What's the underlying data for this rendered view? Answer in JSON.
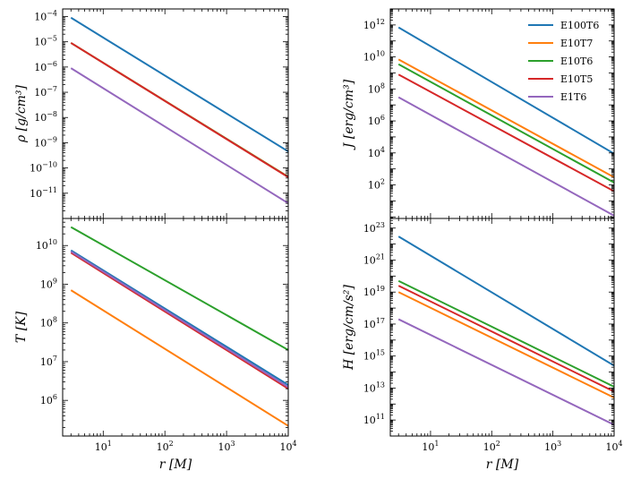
{
  "legend": [
    "E100T6",
    "E10T7",
    "E10T6",
    "E10T5",
    "E1T6"
  ],
  "colors": {
    "E100T6": "#1f77b4",
    "E10T7": "#ff7f0e",
    "E10T6": "#2ca02c",
    "E10T5": "#d62728",
    "E1T6": "#9467bd"
  },
  "chart_data": [
    {
      "type": "line",
      "panel": "top-left",
      "ylabel": "ρ  [g/cm³]",
      "xlabel": "",
      "xscale": "log",
      "yscale": "log",
      "xlim": [
        2.2,
        10000
      ],
      "ylim": [
        1e-12,
        0.0002
      ],
      "yticks": [
        {
          "value": 0.0001,
          "base": "10",
          "exp": "−4"
        },
        {
          "value": 1e-05,
          "base": "10",
          "exp": "−5"
        },
        {
          "value": 1e-06,
          "base": "10",
          "exp": "−6"
        },
        {
          "value": 1e-07,
          "base": "10",
          "exp": "−7"
        },
        {
          "value": 1e-08,
          "base": "10",
          "exp": "−8"
        },
        {
          "value": 1e-09,
          "base": "10",
          "exp": "−9"
        },
        {
          "value": 1e-10,
          "base": "10",
          "exp": "−10"
        },
        {
          "value": 1e-11,
          "base": "10",
          "exp": "−11"
        }
      ],
      "xticks": [],
      "series": [
        {
          "name": "E100T6",
          "x": [
            3,
            10000
          ],
          "y": [
            9e-05,
            4.5e-10
          ]
        },
        {
          "name": "E10T7",
          "x": [
            3,
            10000
          ],
          "y": [
            9e-06,
            4.5e-11
          ]
        },
        {
          "name": "E10T6",
          "x": [
            3,
            10000
          ],
          "y": [
            9e-06,
            4.4e-11
          ]
        },
        {
          "name": "E10T5",
          "x": [
            3,
            10000
          ],
          "y": [
            9e-06,
            4.3e-11
          ]
        },
        {
          "name": "E1T6",
          "x": [
            3,
            10000
          ],
          "y": [
            9e-07,
            4e-12
          ]
        }
      ]
    },
    {
      "type": "line",
      "panel": "top-right",
      "ylabel": "J  [erg/cm³]",
      "xlabel": "",
      "xscale": "log",
      "yscale": "log",
      "xlim": [
        2.2,
        10000
      ],
      "ylim": [
        0.8,
        10000000000000.0
      ],
      "yticks": [
        {
          "value": 1000000000000.0,
          "base": "10",
          "exp": "12"
        },
        {
          "value": 10000000000.0,
          "base": "10",
          "exp": "10"
        },
        {
          "value": 100000000.0,
          "base": "10",
          "exp": "8"
        },
        {
          "value": 1000000.0,
          "base": "10",
          "exp": "6"
        },
        {
          "value": 10000.0,
          "base": "10",
          "exp": "4"
        },
        {
          "value": 100.0,
          "base": "10",
          "exp": "2"
        }
      ],
      "xticks": [],
      "series": [
        {
          "name": "E100T6",
          "x": [
            3,
            10000
          ],
          "y": [
            700000000000.0,
            9000.0
          ]
        },
        {
          "name": "E10T7",
          "x": [
            3,
            10000
          ],
          "y": [
            7000000000.0,
            300
          ]
        },
        {
          "name": "E10T6",
          "x": [
            3,
            10000
          ],
          "y": [
            3500000000.0,
            140
          ]
        },
        {
          "name": "E10T5",
          "x": [
            3,
            10000
          ],
          "y": [
            800000000.0,
            40
          ]
        },
        {
          "name": "E1T6",
          "x": [
            3,
            10000
          ],
          "y": [
            30000000.0,
            1.2
          ]
        }
      ]
    },
    {
      "type": "line",
      "panel": "bottom-left",
      "ylabel": "T  [K]",
      "xlabel": "r  [M]",
      "xscale": "log",
      "yscale": "log",
      "xlim": [
        2.2,
        10000
      ],
      "ylim": [
        120000.0,
        50000000000.0
      ],
      "yticks": [
        {
          "value": 10000000000.0,
          "base": "10",
          "exp": "10"
        },
        {
          "value": 1000000000.0,
          "base": "10",
          "exp": "9"
        },
        {
          "value": 100000000.0,
          "base": "10",
          "exp": "8"
        },
        {
          "value": 10000000.0,
          "base": "10",
          "exp": "7"
        },
        {
          "value": 1000000.0,
          "base": "10",
          "exp": "6"
        }
      ],
      "xticks": [
        {
          "value": 10,
          "base": "10",
          "exp": "1"
        },
        {
          "value": 100,
          "base": "10",
          "exp": "2"
        },
        {
          "value": 1000,
          "base": "10",
          "exp": "3"
        },
        {
          "value": 10000,
          "base": "10",
          "exp": "4"
        }
      ],
      "series": [
        {
          "name": "E100T6",
          "x": [
            3,
            10000
          ],
          "y": [
            7500000000.0,
            2500000.0
          ]
        },
        {
          "name": "E10T7",
          "x": [
            3,
            10000
          ],
          "y": [
            700000000.0,
            220000.0
          ]
        },
        {
          "name": "E10T6",
          "x": [
            3,
            10000
          ],
          "y": [
            30000000000.0,
            20000000.0
          ]
        },
        {
          "name": "E10T5",
          "x": [
            3,
            10000
          ],
          "y": [
            6500000000.0,
            2000000.0
          ]
        },
        {
          "name": "E1T6",
          "x": [
            3,
            10000
          ],
          "y": [
            7000000000.0,
            2200000.0
          ]
        }
      ]
    },
    {
      "type": "line",
      "panel": "bottom-right",
      "ylabel": "H  [erg/cm/s²]",
      "xlabel": "r  [M]",
      "xscale": "log",
      "yscale": "log",
      "xlim": [
        2.2,
        10000
      ],
      "ylim": [
        10000000000.0,
        4e+23
      ],
      "yticks": [
        {
          "value": 1e+23,
          "base": "10",
          "exp": "23"
        },
        {
          "value": 1e+21,
          "base": "10",
          "exp": "21"
        },
        {
          "value": 1e+19,
          "base": "10",
          "exp": "19"
        },
        {
          "value": 1e+17,
          "base": "10",
          "exp": "17"
        },
        {
          "value": 1000000000000000.0,
          "base": "10",
          "exp": "15"
        },
        {
          "value": 10000000000000.0,
          "base": "10",
          "exp": "13"
        },
        {
          "value": 100000000000.0,
          "base": "10",
          "exp": "11"
        }
      ],
      "xticks": [
        {
          "value": 10,
          "base": "10",
          "exp": "1"
        },
        {
          "value": 100,
          "base": "10",
          "exp": "2"
        },
        {
          "value": 1000,
          "base": "10",
          "exp": "3"
        },
        {
          "value": 10000,
          "base": "10",
          "exp": "4"
        }
      ],
      "series": [
        {
          "name": "E100T6",
          "x": [
            3,
            10000
          ],
          "y": [
            3e+22,
            250000000000000.0
          ]
        },
        {
          "name": "E10T7",
          "x": [
            3,
            10000
          ],
          "y": [
            1e+19,
            2500000000000.0
          ]
        },
        {
          "name": "E10T6",
          "x": [
            3,
            10000
          ],
          "y": [
            5e+19,
            12000000000000.0
          ]
        },
        {
          "name": "E10T5",
          "x": [
            3,
            10000
          ],
          "y": [
            2.5e+19,
            6000000000000.0
          ]
        },
        {
          "name": "E1T6",
          "x": [
            3,
            10000
          ],
          "y": [
            2e+17,
            50000000000.0
          ]
        }
      ]
    }
  ]
}
